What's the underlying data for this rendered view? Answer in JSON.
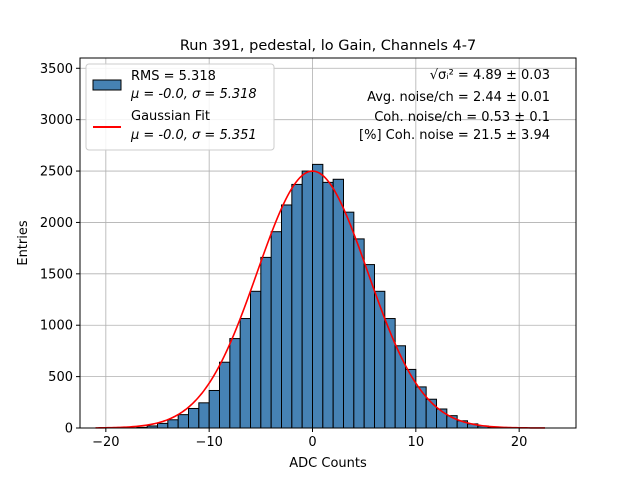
{
  "chart_data": {
    "type": "bar",
    "title": "Run 391, pedestal, lo Gain, Channels 4-7",
    "xlabel": "ADC Counts",
    "ylabel": "Entries",
    "xlim": [
      -22.5,
      25.5
    ],
    "ylim": [
      0,
      3600
    ],
    "xticks": [
      -20,
      -10,
      0,
      10,
      20
    ],
    "xtick_labels": [
      "−20",
      "−10",
      "0",
      "10",
      "20"
    ],
    "yticks": [
      0,
      500,
      1000,
      1500,
      2000,
      2500,
      3000,
      3500
    ],
    "ytick_labels": [
      "0",
      "500",
      "1000",
      "1500",
      "2000",
      "2500",
      "3000",
      "3500"
    ],
    "grid": true,
    "legend_position": "upper-left",
    "bin_width": 1,
    "bin_left_edges": [
      -21,
      -20,
      -19,
      -18,
      -17,
      -16,
      -15,
      -14,
      -13,
      -12,
      -11,
      -10,
      -9,
      -8,
      -7,
      -6,
      -5,
      -4,
      -3,
      -2,
      -1,
      0,
      1,
      2,
      3,
      4,
      5,
      6,
      7,
      8,
      9,
      10,
      11,
      12,
      13,
      14,
      15,
      16,
      17,
      18,
      19,
      20,
      21,
      22
    ],
    "counts": [
      0,
      0,
      0,
      2,
      6,
      20,
      45,
      80,
      130,
      190,
      245,
      365,
      640,
      870,
      1065,
      1330,
      1660,
      1910,
      2170,
      2370,
      2500,
      2565,
      2390,
      2420,
      2100,
      1840,
      1590,
      1330,
      1065,
      800,
      570,
      400,
      280,
      185,
      120,
      70,
      40,
      20,
      10,
      5,
      2,
      1,
      0,
      0
    ],
    "histogram_color": "#4682b4",
    "series": [
      {
        "name": "RMS = 5.318",
        "sublabel": "μ = -0.0, σ = 5.318",
        "kind": "histogram",
        "color": "#4682b4"
      },
      {
        "name": "Gaussian Fit",
        "sublabel": "μ = -0.0, σ = 5.351",
        "kind": "line",
        "color": "#ff0000",
        "mu": 0.0,
        "sigma": 5.351,
        "amplitude": 2500,
        "x_range": [
          -21,
          22.5
        ]
      }
    ],
    "annotations": [
      {
        "prefix": "√σᵢ²",
        "text": " = 4.89 ± 0.03"
      },
      {
        "text": "Avg. noise/ch = 2.44 ± 0.01"
      },
      {
        "text": "Coh. noise/ch = 0.53 ± 0.1"
      },
      {
        "text": "[%] Coh. noise = 21.5 ± 3.94"
      }
    ]
  }
}
